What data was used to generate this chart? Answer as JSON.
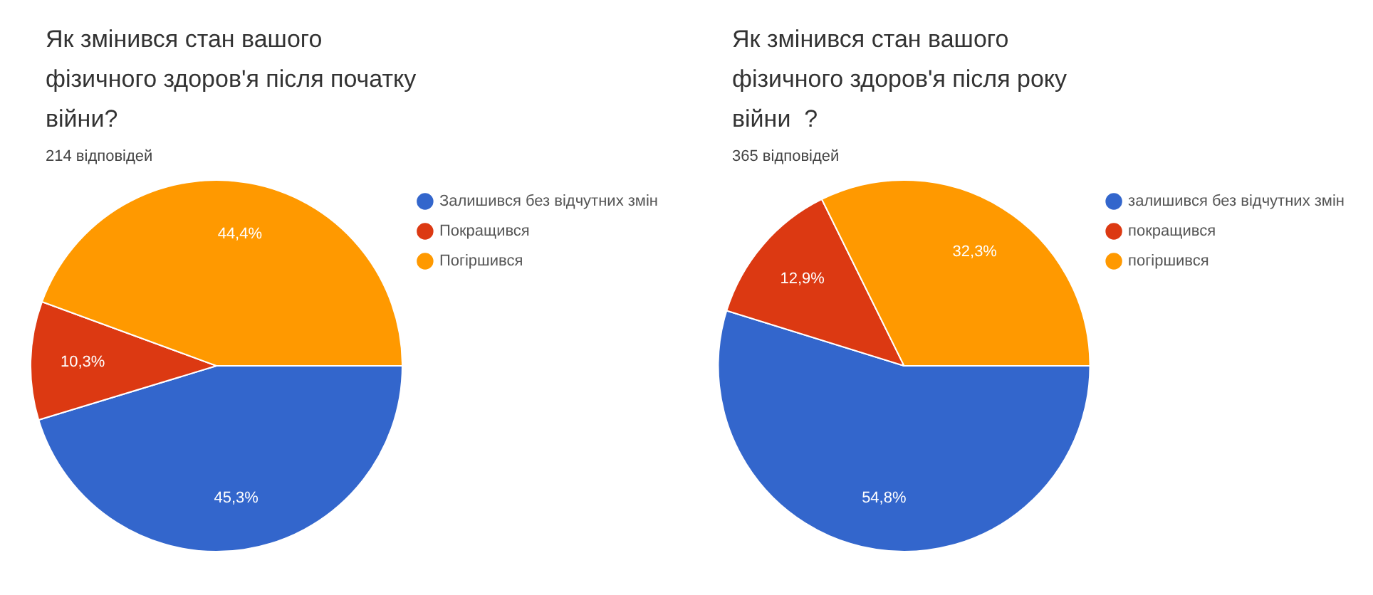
{
  "chart_data": [
    {
      "type": "pie",
      "title": "Як змінився стан вашого фізичного здоров'я після початку війни?",
      "subtitle": "214 відповідей",
      "categories": [
        "Залишився без відчутних змін",
        "Покращився",
        "Погіршився"
      ],
      "values": [
        45.3,
        10.3,
        44.4
      ],
      "colors": [
        "#3366cc",
        "#dc3912",
        "#ff9900"
      ],
      "value_labels": [
        "45,3%",
        "10,3%",
        "44,4%"
      ],
      "legend": "right"
    },
    {
      "type": "pie",
      "title": "Як змінився стан вашого фізичного здоров'я після року війни  ?",
      "subtitle": "365 відповідей",
      "categories": [
        "залишився без відчутних змін",
        "покращився",
        "погіршився"
      ],
      "values": [
        54.8,
        12.9,
        32.3
      ],
      "colors": [
        "#3366cc",
        "#dc3912",
        "#ff9900"
      ],
      "value_labels": [
        "54,8%",
        "12,9%",
        "32,3%"
      ],
      "legend": "right"
    }
  ]
}
